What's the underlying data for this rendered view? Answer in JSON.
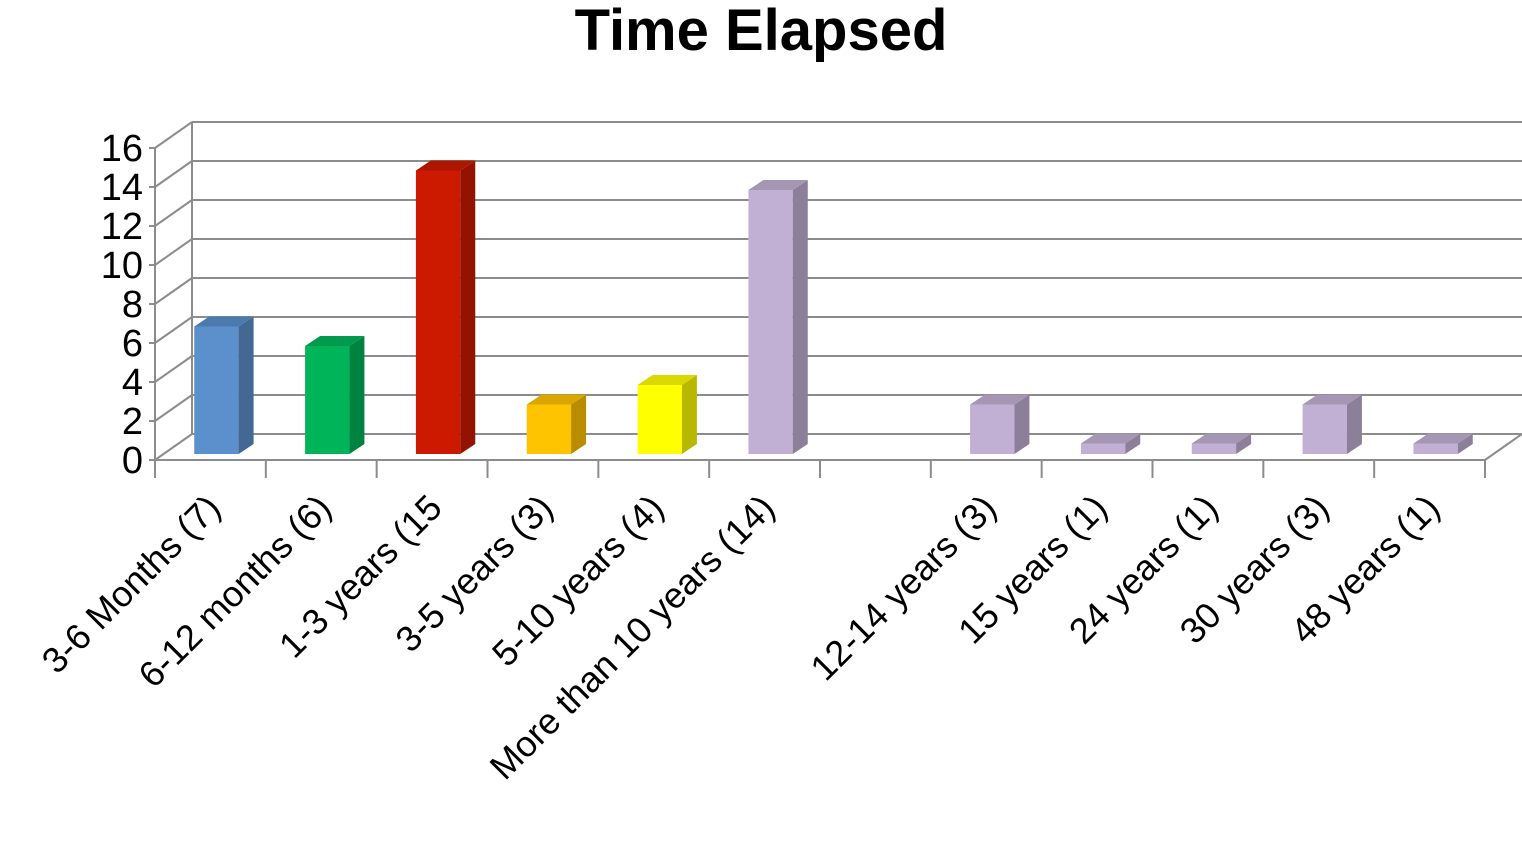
{
  "chart_data": {
    "type": "bar",
    "title": "Time Elapsed",
    "xlabel": "",
    "ylabel": "",
    "ylim": [
      0,
      16
    ],
    "y_ticks": [
      0,
      2,
      4,
      6,
      8,
      10,
      12,
      14,
      16
    ],
    "grid": true,
    "legend": "none",
    "style": "3d-column",
    "categories": [
      "3-6 Months (7)",
      "6-12 months (6)",
      "1-3 years (15",
      "3-5 years (3)",
      "5-10 years (4)",
      "More than 10 years (14)",
      "",
      "12-14 years (3)",
      "15 years (1)",
      "24 years (1)",
      "30 years (3)",
      "48 years (1)"
    ],
    "values": [
      7,
      6,
      15,
      3,
      4,
      14,
      null,
      3,
      1,
      1,
      3,
      1
    ],
    "bar_colors": [
      "#5B90CC",
      "#00B45A",
      "#CC1A00",
      "#FFC400",
      "#FFFF00",
      "#C2B0D4",
      "#C2B0D4",
      "#C2B0D4",
      "#C2B0D4",
      "#C2B0D4",
      "#C2B0D4",
      "#C2B0D4"
    ]
  }
}
